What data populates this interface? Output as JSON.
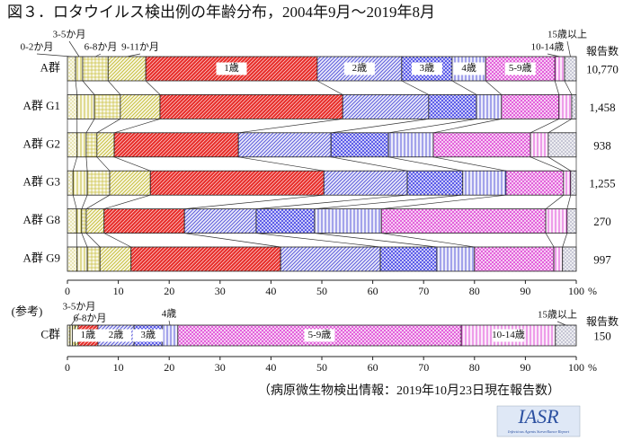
{
  "chart_data": [
    {
      "type": "bar",
      "orientation": "horizontal",
      "stacked": true,
      "title": "図３．ロタウイルス検出例の年齢分布，2004年9月～2019年8月",
      "categories": [
        "A群",
        "A群 G1",
        "A群 G2",
        "A群 G3",
        "A群 G8",
        "A群 G9"
      ],
      "series": [
        {
          "name": "0-2か月",
          "color": "#c9bf3c",
          "pattern": "dots",
          "values": [
            1.6,
            1.9,
            1.9,
            1.1,
            1.8,
            1.9
          ]
        },
        {
          "name": "3-5か月",
          "color": "#c9bf3c",
          "pattern": "vertical",
          "values": [
            1.4,
            3.4,
            1.8,
            2.8,
            1.0,
            2.0
          ]
        },
        {
          "name": "6-8か月",
          "color": "#c9bf3c",
          "pattern": "grid",
          "values": [
            5.0,
            5.1,
            2.1,
            4.4,
            0.9,
            2.5
          ]
        },
        {
          "name": "9-11か月",
          "color": "#c9bf3c",
          "pattern": "diagonal",
          "values": [
            7.4,
            7.8,
            3.4,
            8.0,
            3.5,
            6.1
          ]
        },
        {
          "name": "1歳",
          "color": "#e8302c",
          "pattern": "diagonal-solid",
          "values": [
            33.7,
            35.9,
            24.4,
            34.1,
            15.8,
            29.4
          ]
        },
        {
          "name": "2歳",
          "color": "#5b5bdc",
          "pattern": "diagonal",
          "values": [
            16.6,
            16.9,
            18.2,
            16.4,
            14.1,
            19.6
          ]
        },
        {
          "name": "3歳",
          "color": "#4a4ae6",
          "pattern": "crosshatch",
          "values": [
            9.9,
            9.4,
            11.3,
            10.9,
            11.5,
            11.1
          ]
        },
        {
          "name": "4歳",
          "color": "#5b5bdc",
          "pattern": "vertical",
          "values": [
            6.6,
            4.9,
            8.8,
            8.5,
            13.1,
            7.4
          ]
        },
        {
          "name": "5-9歳",
          "color": "#e050d8",
          "pattern": "crosshatch",
          "values": [
            13.6,
            11.3,
            19.1,
            11.3,
            32.3,
            15.6
          ]
        },
        {
          "name": "10-14歳",
          "color": "#e050d8",
          "pattern": "vertical",
          "values": [
            1.9,
            2.5,
            3.5,
            1.4,
            4.2,
            1.7
          ]
        },
        {
          "name": "15歳以上",
          "color": "#6a6a90",
          "pattern": "dots",
          "values": [
            2.3,
            0.9,
            5.5,
            1.1,
            1.8,
            2.7
          ]
        }
      ],
      "xlim": [
        0,
        100
      ],
      "xticks": [
        0,
        10,
        20,
        30,
        40,
        50,
        60,
        70,
        80,
        90,
        100
      ],
      "xlabel": "%",
      "report_counts": {
        "label": "報告数",
        "values": [
          10770,
          1458,
          938,
          1255,
          270,
          997
        ],
        "value_labels": [
          "10,770",
          "1,458",
          "938",
          "1,255",
          "270",
          "997"
        ]
      }
    },
    {
      "type": "bar",
      "orientation": "horizontal",
      "stacked": true,
      "annotation": "(参考)",
      "categories": [
        "C群"
      ],
      "series": [
        {
          "name": "0-2か月",
          "color": "#c9bf3c",
          "pattern": "dots",
          "values": [
            0.5
          ]
        },
        {
          "name": "3-5か月",
          "color": "#c9bf3c",
          "pattern": "vertical",
          "values": [
            0.5
          ]
        },
        {
          "name": "6-8か月",
          "color": "#c9bf3c",
          "pattern": "grid",
          "values": [
            0.5
          ]
        },
        {
          "name": "9-11か月",
          "color": "#c9bf3c",
          "pattern": "diagonal",
          "values": [
            0.6
          ]
        },
        {
          "name": "1歳",
          "color": "#e8302c",
          "pattern": "diagonal-solid",
          "values": [
            3.9
          ]
        },
        {
          "name": "2歳",
          "color": "#5b5bdc",
          "pattern": "diagonal",
          "values": [
            7.1
          ]
        },
        {
          "name": "3歳",
          "color": "#4a4ae6",
          "pattern": "crosshatch",
          "values": [
            5.5
          ]
        },
        {
          "name": "4歳",
          "color": "#5b5bdc",
          "pattern": "vertical",
          "values": [
            3.1
          ]
        },
        {
          "name": "5-9歳",
          "color": "#e050d8",
          "pattern": "crosshatch",
          "values": [
            55.7
          ]
        },
        {
          "name": "10-14歳",
          "color": "#e050d8",
          "pattern": "vertical",
          "values": [
            18.5
          ]
        },
        {
          "name": "15歳以上",
          "color": "#6a6a90",
          "pattern": "dots",
          "values": [
            4.1
          ]
        }
      ],
      "xlim": [
        0,
        100
      ],
      "xticks": [
        0,
        10,
        20,
        30,
        40,
        50,
        60,
        70,
        80,
        90,
        100
      ],
      "xlabel": "%",
      "report_counts": {
        "label": "報告数",
        "values": [
          150
        ],
        "value_labels": [
          "150"
        ]
      }
    }
  ],
  "source": "（病原微生物検出情報：2019年10月23日現在報告数）",
  "logo": {
    "title": "IASR",
    "subtitle": "Infectious Agents Surveillance Report"
  }
}
